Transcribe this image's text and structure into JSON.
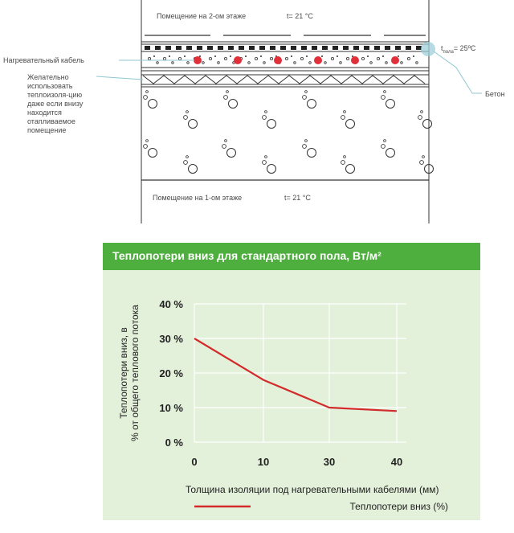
{
  "diagram": {
    "room_upper": "Помещение на 2-ом этаже",
    "temp_upper": "t= 21 °C",
    "room_lower": "Помещение на 1-ом этаже",
    "temp_lower": "t= 21 °C",
    "floor_temp_t": "t",
    "floor_temp_sub": "пола",
    "floor_temp_val": "= 25ºC",
    "label_cable": "Нагревательный кабель",
    "label_insulation": "Желательно использовать теплоизоля-цию даже если внизу находится отапливаемое помещение",
    "label_concrete": "Бетон",
    "colors": {
      "cable": "#e0303a",
      "callout": "#8fc7d1",
      "line": "#333333"
    }
  },
  "chart_data": {
    "type": "line",
    "title": "Теплопотери вниз для стандартного пола, Вт/м²",
    "xlabel": "Толщина изоляции под нагревательными кабелями (мм)",
    "ylabel": "Теплопотери вниз, в % от общего теплового потока",
    "categories": [
      "0",
      "10",
      "30",
      "40"
    ],
    "series": [
      {
        "name": "Теплопотери вниз (%)",
        "values": [
          30,
          18,
          10,
          9
        ],
        "color": "#d32a2a"
      }
    ],
    "y_ticks": [
      "0 %",
      "10 %",
      "20 %",
      "30 %",
      "40 %"
    ],
    "ylim": [
      0,
      40
    ],
    "grid": true,
    "legend": "bottom",
    "colors": {
      "header": "#4eae3e",
      "panel": "#e3f0da",
      "grid": "#ffffff"
    }
  }
}
